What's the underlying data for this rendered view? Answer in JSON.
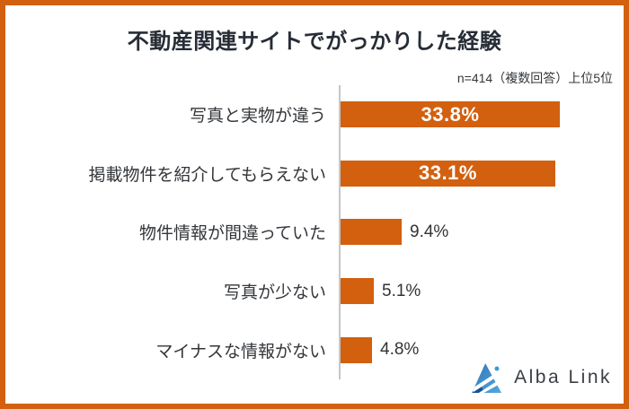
{
  "frame": {
    "border_color": "#d2600f",
    "background": "#ffffff"
  },
  "header": {
    "title": "不動産関連サイトでがっかりした経験",
    "note": "n=414（複数回答）上位5位"
  },
  "chart_data": {
    "type": "bar",
    "orientation": "horizontal",
    "title": "不動産関連サイトでがっかりした経験",
    "note": "n=414（複数回答）上位5位",
    "unit": "%",
    "xlim": [
      0,
      43
    ],
    "grid": "off",
    "legend": "none",
    "categories": [
      "写真と実物が違う",
      "掲載物件を紹介してもらえない",
      "物件情報が間違っていた",
      "写真が少ない",
      "マイナスな情報がない"
    ],
    "values": [
      33.8,
      33.1,
      9.4,
      5.1,
      4.8
    ],
    "rows": [
      {
        "label": "写真と実物が違う",
        "value": 33.8,
        "display": "33.8%",
        "value_inside": true
      },
      {
        "label": "掲載物件を紹介してもらえない",
        "value": 33.1,
        "display": "33.1%",
        "value_inside": true
      },
      {
        "label": "物件情報が間違っていた",
        "value": 9.4,
        "display": "9.4%",
        "value_inside": false
      },
      {
        "label": "写真が少ない",
        "value": 5.1,
        "display": "5.1%",
        "value_inside": false
      },
      {
        "label": "マイナスな情報がない",
        "value": 4.8,
        "display": "4.8%",
        "value_inside": false
      }
    ],
    "colors": {
      "bar": "#d2600f",
      "value_inside_text": "#ffffff",
      "value_outside_text": "#333333",
      "axis_line": "#c6c6c6",
      "label_text": "#33363a",
      "title_text": "#272d36"
    }
  },
  "branding": {
    "logo_text": "Alba Link",
    "logo_icon": "blue-triangle-mountain-icon",
    "icon_colors": {
      "dark_blue": "#1b4e91",
      "mid_blue": "#2f74ba",
      "light_blue": "#55a8dd",
      "dot_blue": "#3e9ad6"
    }
  }
}
